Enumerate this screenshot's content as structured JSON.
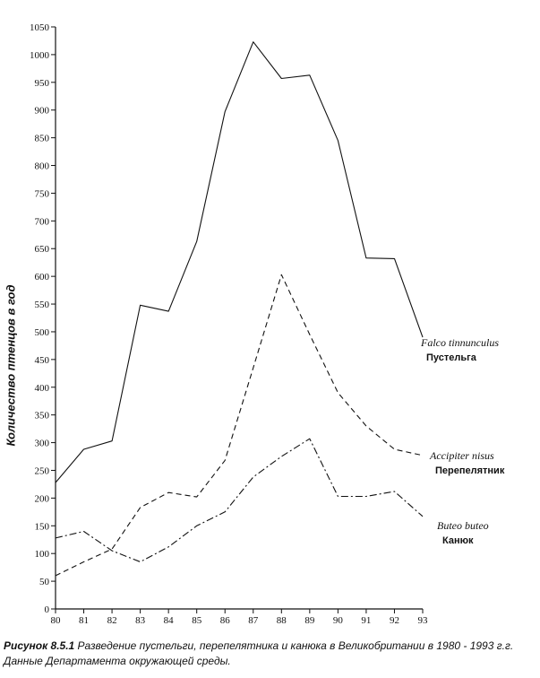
{
  "chart_data": {
    "type": "line",
    "ylabel": "Количество птенцов в год",
    "xlabel": "",
    "x": [
      "80",
      "81",
      "82",
      "83",
      "84",
      "85",
      "86",
      "87",
      "88",
      "89",
      "90",
      "91",
      "92",
      "93"
    ],
    "ylim": [
      0,
      1050
    ],
    "yticks": [
      0,
      50,
      100,
      150,
      200,
      250,
      300,
      350,
      400,
      450,
      500,
      550,
      600,
      650,
      700,
      750,
      800,
      850,
      900,
      950,
      1000,
      1050
    ],
    "series": [
      {
        "name": "Falco tinnunculus",
        "name_ru": "Пустельга",
        "style": "solid",
        "values": [
          228,
          288,
          303,
          548,
          537,
          663,
          897,
          1023,
          957,
          963,
          845,
          633,
          632,
          490
        ]
      },
      {
        "name": "Accipiter nisus",
        "name_ru": "Перепелятник",
        "style": "dashed",
        "values": [
          60,
          85,
          108,
          183,
          210,
          202,
          268,
          435,
          603,
          495,
          390,
          330,
          288,
          277
        ]
      },
      {
        "name": "Buteo buteo",
        "name_ru": "Канюк",
        "style": "dashdot",
        "values": [
          128,
          140,
          105,
          85,
          112,
          150,
          175,
          238,
          275,
          307,
          203,
          203,
          212,
          167
        ]
      }
    ]
  },
  "caption": {
    "label": "Рисунок 8.5.1",
    "text": " Разведение пустельги, перепелятника и канюка в Великобритании в 1980 - 1993 г.г. Данные Департамента окружающей среды."
  }
}
